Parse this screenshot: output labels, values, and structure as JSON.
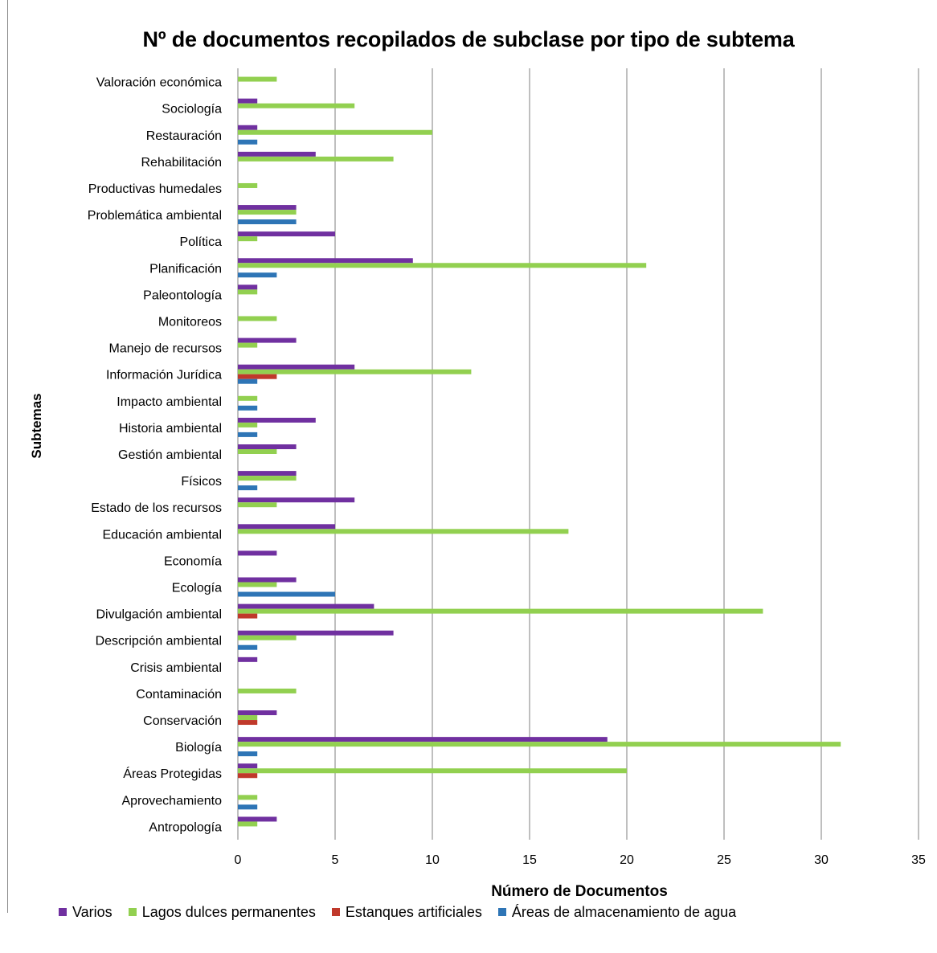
{
  "chart_data": {
    "type": "bar",
    "orientation": "horizontal",
    "title": "Nº de documentos recopilados de subclase por tipo de subtema",
    "xlabel": "Número de Documentos",
    "ylabel": "Subtemas",
    "xlim": [
      0,
      35
    ],
    "xticks": [
      "0",
      "5",
      "10",
      "15",
      "20",
      "25",
      "30",
      "35"
    ],
    "grid": true,
    "legend_position": "bottom",
    "categories": [
      "Valoración económica",
      "Sociología",
      "Restauración",
      "Rehabilitación",
      "Productivas humedales",
      "Problemática ambiental",
      "Política",
      "Planificación",
      "Paleontología",
      "Monitoreos",
      "Manejo de recursos",
      "Información Jurídica",
      "Impacto ambiental",
      "Historia ambiental",
      "Gestión ambiental",
      "Físicos",
      "Estado de los recursos",
      "Educación ambiental",
      "Economía",
      "Ecología",
      "Divulgación ambiental",
      "Descripción ambiental",
      "Crisis ambiental",
      "Contaminación",
      "Conservación",
      "Biología",
      "Áreas Protegidas",
      "Aprovechamiento",
      "Antropología"
    ],
    "series": [
      {
        "name": "Varios",
        "color": "#7030a0",
        "values": [
          0,
          1,
          1,
          4,
          0,
          3,
          5,
          9,
          1,
          0,
          3,
          6,
          0,
          4,
          3,
          3,
          6,
          5,
          2,
          3,
          7,
          8,
          1,
          0,
          2,
          19,
          1,
          0,
          2
        ]
      },
      {
        "name": "Lagos dulces permanentes",
        "color": "#92d050",
        "values": [
          2,
          6,
          10,
          8,
          1,
          3,
          1,
          21,
          1,
          2,
          1,
          12,
          1,
          1,
          2,
          3,
          2,
          17,
          0,
          2,
          27,
          3,
          0,
          3,
          1,
          31,
          20,
          1,
          1
        ]
      },
      {
        "name": "Estanques artificiales",
        "color": "#c0392b",
        "values": [
          0,
          0,
          0,
          0,
          0,
          0,
          0,
          0,
          0,
          0,
          0,
          2,
          0,
          0,
          0,
          0,
          0,
          0,
          0,
          0,
          1,
          0,
          0,
          0,
          1,
          0,
          1,
          0,
          0
        ]
      },
      {
        "name": "Áreas de almacenamiento de agua",
        "color": "#2e75b6",
        "values": [
          0,
          0,
          1,
          0,
          0,
          3,
          0,
          2,
          0,
          0,
          0,
          1,
          1,
          1,
          0,
          1,
          0,
          0,
          0,
          5,
          0,
          1,
          0,
          0,
          0,
          1,
          0,
          1,
          0
        ]
      }
    ]
  }
}
